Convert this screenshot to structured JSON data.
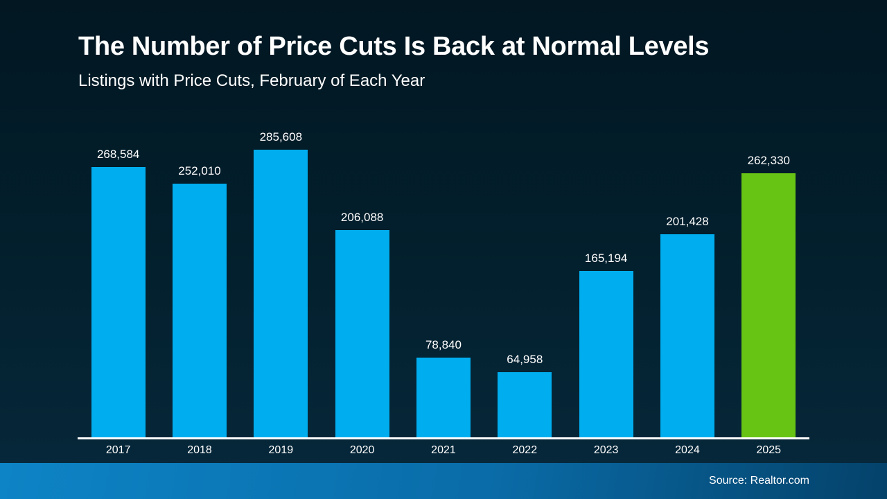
{
  "header": {
    "title": "The Number of Price Cuts Is Back at Normal Levels",
    "subtitle": "Listings with Price Cuts, February of Each Year"
  },
  "footer": {
    "source": "Source: Realtor.com"
  },
  "colors": {
    "background_top": "#021722",
    "background_bottom": "#07293c",
    "bar": "#00aeef",
    "highlight": "#67c414",
    "axis": "#ffffff",
    "text": "#ffffff",
    "footer_left": "#0d84c6",
    "footer_right": "#04426a"
  },
  "chart_data": {
    "type": "bar",
    "title": "The Number of Price Cuts Is Back at Normal Levels",
    "subtitle": "Listings with Price Cuts, February of Each Year",
    "xlabel": "",
    "ylabel": "Listings with price cuts",
    "categories": [
      "2017",
      "2018",
      "2019",
      "2020",
      "2021",
      "2022",
      "2023",
      "2024",
      "2025"
    ],
    "values": [
      268584,
      252010,
      285608,
      206088,
      78840,
      64958,
      165194,
      201428,
      262330
    ],
    "value_labels": [
      "268,584",
      "252,010",
      "285,608",
      "206,088",
      "78,840",
      "64,958",
      "165,194",
      "201,428",
      "262,330"
    ],
    "highlight_index": 8,
    "ylim": [
      0,
      285608
    ],
    "grid": false,
    "legend": false,
    "annotation": "2025 bar highlighted in green; all other years light blue"
  }
}
